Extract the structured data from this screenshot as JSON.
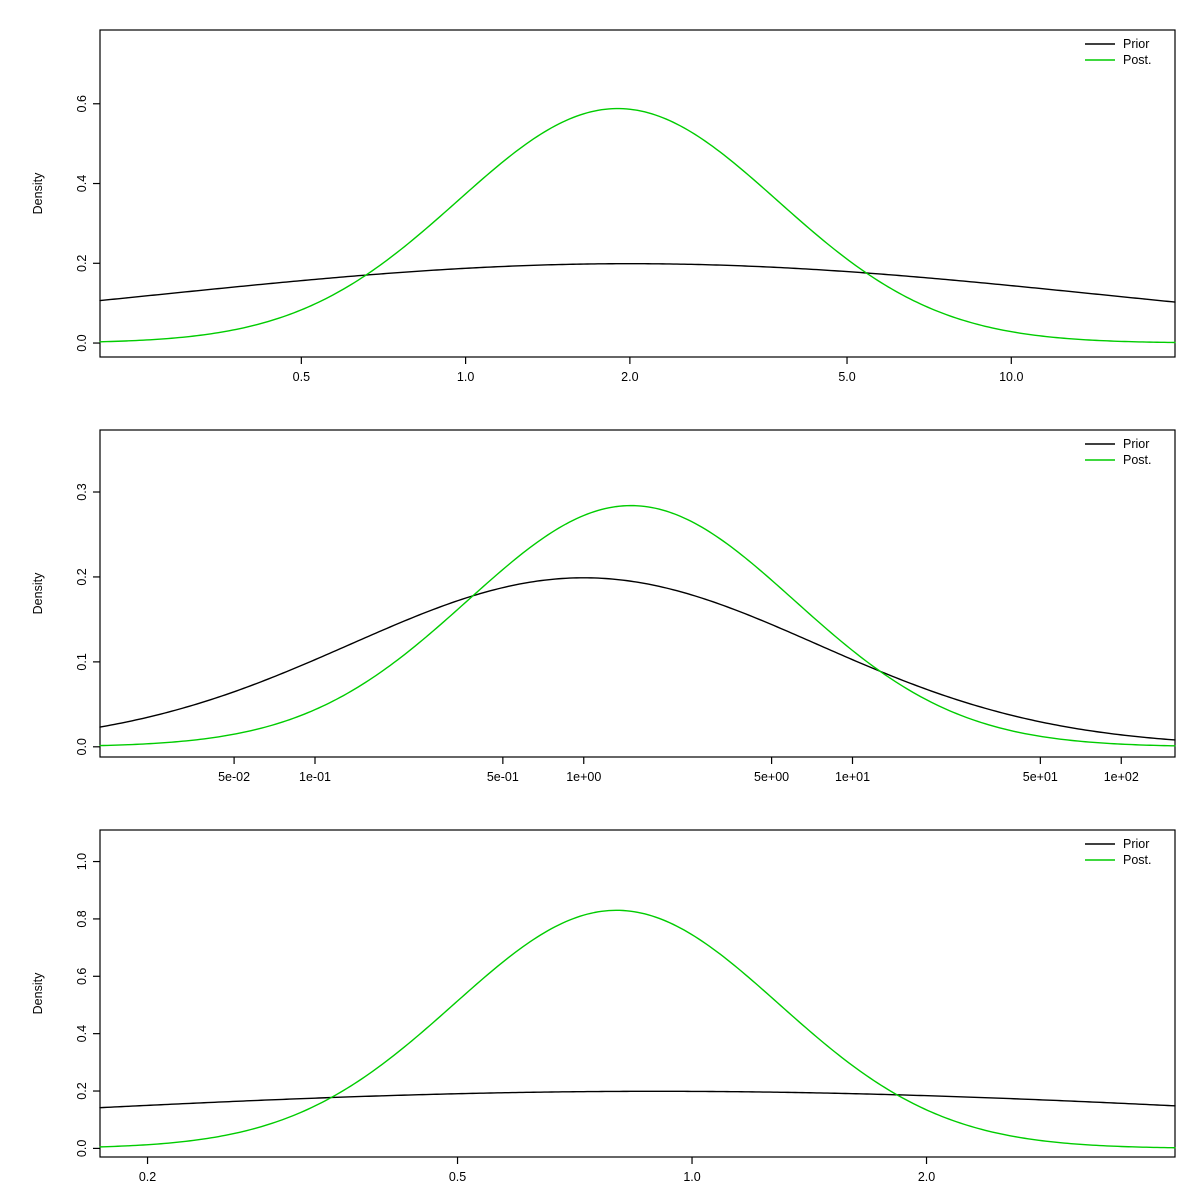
{
  "page": {
    "background": "#ffffff",
    "axis_color": "#000000"
  },
  "colors": {
    "prior": "#000000",
    "posterior": "#00cc00"
  },
  "legend": {
    "position": "top-right",
    "entries": [
      {
        "label": "Prior",
        "color": "#000000"
      },
      {
        "label": "Post.",
        "color": "#00cc00"
      }
    ]
  },
  "chart_data": [
    {
      "type": "line",
      "title": "",
      "xlabel": "",
      "ylabel": "Density",
      "xscale": "log10",
      "grid": false,
      "xlim_log10": [
        -0.67,
        1.3
      ],
      "ylim": [
        -0.035,
        0.785
      ],
      "xticks": [
        {
          "label": "0.5",
          "log10": -0.30103
        },
        {
          "label": "1.0",
          "log10": 0.0
        },
        {
          "label": "2.0",
          "log10": 0.30103
        },
        {
          "label": "5.0",
          "log10": 0.69897
        },
        {
          "label": "10.0",
          "log10": 1.0
        }
      ],
      "yticks": [
        {
          "label": "0.0",
          "value": 0.0
        },
        {
          "label": "0.2",
          "value": 0.2
        },
        {
          "label": "0.4",
          "value": 0.4
        },
        {
          "label": "0.6",
          "value": 0.6
        }
      ],
      "series": [
        {
          "name": "Prior",
          "color": "#000000",
          "shape": "gaussian_in_log_x",
          "center_x": 2.0,
          "sigma_ln": 2.0,
          "peak_y": 0.199,
          "peak_point": {
            "x": 2.0,
            "y": 0.199
          }
        },
        {
          "name": "Post.",
          "color": "#00cc00",
          "shape": "gaussian_in_log_x",
          "center_x": 1.9,
          "sigma_ln": 0.675,
          "peak_y": 0.588,
          "peak_point": {
            "x": 1.9,
            "y": 0.588
          }
        }
      ]
    },
    {
      "type": "line",
      "title": "",
      "xlabel": "",
      "ylabel": "Density",
      "xscale": "log10",
      "grid": false,
      "xlim_log10": [
        -1.8,
        2.2
      ],
      "ylim": [
        -0.012,
        0.373
      ],
      "xticks": [
        {
          "label": "5e-02",
          "log10": -1.30103
        },
        {
          "label": "1e-01",
          "log10": -1.0
        },
        {
          "label": "5e-01",
          "log10": -0.30103
        },
        {
          "label": "1e+00",
          "log10": 0.0
        },
        {
          "label": "5e+00",
          "log10": 0.69897
        },
        {
          "label": "1e+01",
          "log10": 1.0
        },
        {
          "label": "5e+01",
          "log10": 1.69897
        },
        {
          "label": "1e+02",
          "log10": 2.0
        }
      ],
      "yticks": [
        {
          "label": "0.0",
          "value": 0.0
        },
        {
          "label": "0.1",
          "value": 0.1
        },
        {
          "label": "0.2",
          "value": 0.2
        },
        {
          "label": "0.3",
          "value": 0.3
        }
      ],
      "series": [
        {
          "name": "Prior",
          "color": "#000000",
          "shape": "gaussian_in_log_x",
          "center_x": 1.0,
          "sigma_ln": 2.0,
          "peak_y": 0.199,
          "peak_point": {
            "x": 1.0,
            "y": 0.199
          }
        },
        {
          "name": "Post.",
          "color": "#00cc00",
          "shape": "gaussian_in_log_x",
          "center_x": 1.5,
          "sigma_ln": 1.4,
          "peak_y": 0.284,
          "peak_point": {
            "x": 1.5,
            "y": 0.284
          }
        }
      ]
    },
    {
      "type": "line",
      "title": "",
      "xlabel": "",
      "ylabel": "Density",
      "xscale": "log10",
      "grid": false,
      "xlim_log10": [
        -0.76,
        0.62
      ],
      "ylim": [
        -0.03,
        1.11
      ],
      "xticks": [
        {
          "label": "0.2",
          "log10": -0.69897
        },
        {
          "label": "0.5",
          "log10": -0.30103
        },
        {
          "label": "1.0",
          "log10": 0.0
        },
        {
          "label": "2.0",
          "log10": 0.30103
        }
      ],
      "yticks": [
        {
          "label": "0.0",
          "value": 0.0
        },
        {
          "label": "0.2",
          "value": 0.2
        },
        {
          "label": "0.4",
          "value": 0.4
        },
        {
          "label": "0.6",
          "value": 0.6
        },
        {
          "label": "0.8",
          "value": 0.8
        },
        {
          "label": "1.0",
          "value": 1.0
        }
      ],
      "series": [
        {
          "name": "Prior",
          "color": "#000000",
          "shape": "gaussian_in_log_x",
          "center_x": 0.9,
          "sigma_ln": 2.0,
          "peak_y": 0.199,
          "peak_point": {
            "x": 0.9,
            "y": 0.199
          }
        },
        {
          "name": "Post.",
          "color": "#00cc00",
          "shape": "gaussian_in_log_x",
          "center_x": 0.8,
          "sigma_ln": 0.48,
          "peak_y": 0.83,
          "peak_point": {
            "x": 0.8,
            "y": 0.83
          }
        }
      ]
    }
  ]
}
